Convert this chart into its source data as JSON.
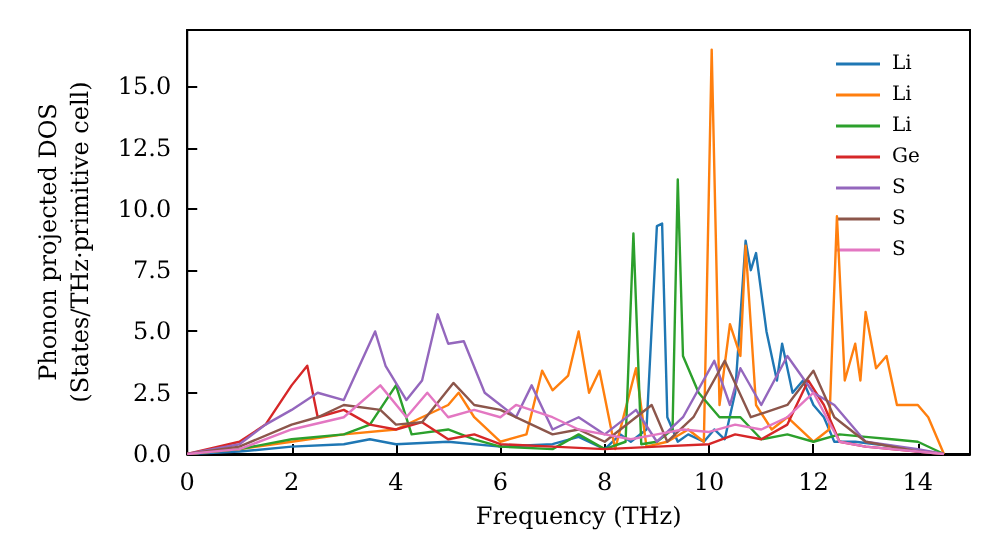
{
  "chart_data": {
    "type": "line",
    "xlabel": "Frequency (THz)",
    "ylabel": "Phonon projected DOS\n(States/THz·primitive cell)",
    "xlim": [
      0,
      15
    ],
    "ylim": [
      0,
      17.3
    ],
    "xticks": [
      0,
      2,
      4,
      6,
      8,
      10,
      12,
      14
    ],
    "yticks": [
      {
        "value": 0,
        "label": "0.0"
      },
      {
        "value": 2.5,
        "label": "2.5"
      },
      {
        "value": 5,
        "label": "5.0"
      },
      {
        "value": 7.5,
        "label": "7.5"
      },
      {
        "value": 10,
        "label": "10.0"
      },
      {
        "value": 12.5,
        "label": "12.5"
      },
      {
        "value": 15,
        "label": "15.0"
      }
    ],
    "grid": false,
    "legend": "top right",
    "marker": "none",
    "line_style": "solid",
    "series": [
      {
        "name": "Li",
        "color": "#1f77b4",
        "x": [
          0,
          1,
          2,
          3,
          3.5,
          4,
          5,
          6,
          7,
          7.5,
          8,
          8.3,
          8.5,
          8.8,
          9,
          9.1,
          9.2,
          9.4,
          9.6,
          9.9,
          10.1,
          10.3,
          10.5,
          10.7,
          10.8,
          10.9,
          11.1,
          11.3,
          11.4,
          11.6,
          11.8,
          12,
          12.2,
          12.4,
          12.8,
          13.2,
          13.6
        ],
        "values": [
          0,
          0.1,
          0.3,
          0.4,
          0.6,
          0.4,
          0.5,
          0.3,
          0.4,
          0.7,
          0.2,
          0.8,
          0.5,
          1.0,
          9.3,
          9.4,
          1.5,
          0.5,
          0.8,
          0.5,
          1.0,
          0.6,
          2.5,
          8.7,
          7.5,
          8.2,
          5.0,
          3.0,
          4.5,
          2.5,
          3.0,
          2.0,
          1.5,
          0.5,
          0.5,
          0.4,
          0.3
        ]
      },
      {
        "name": "Li",
        "color": "#ff7f0e",
        "x": [
          0,
          1,
          2,
          3,
          4,
          4.5,
          5,
          5.2,
          5.5,
          6,
          6.5,
          6.8,
          7,
          7.3,
          7.5,
          7.7,
          7.9,
          8.2,
          8.6,
          8.8,
          9.2,
          9.6,
          9.9,
          10.05,
          10.2,
          10.4,
          10.6,
          10.7,
          10.9,
          11.2,
          11.5,
          12,
          12.3,
          12.45,
          12.6,
          12.8,
          12.9,
          13,
          13.2,
          13.4,
          13.6,
          14,
          14.2,
          14.5
        ],
        "values": [
          0,
          0.2,
          0.5,
          0.8,
          1.0,
          1.5,
          2.0,
          2.5,
          1.5,
          0.5,
          0.8,
          3.4,
          2.6,
          3.2,
          5.0,
          2.5,
          3.4,
          0.2,
          3.5,
          0.3,
          0.5,
          1.0,
          0.5,
          16.5,
          2.0,
          5.3,
          4.0,
          8.5,
          2.0,
          1.0,
          1.5,
          0.5,
          1.0,
          9.7,
          3.0,
          4.5,
          3.0,
          5.8,
          3.5,
          4.0,
          2.0,
          2.0,
          1.5,
          0
        ]
      },
      {
        "name": "Li",
        "color": "#2ca02c",
        "x": [
          0,
          1,
          2,
          3,
          3.5,
          4,
          4.3,
          5,
          5.5,
          6,
          7,
          7.5,
          8,
          8.4,
          8.55,
          8.7,
          9,
          9.3,
          9.4,
          9.5,
          9.8,
          10.2,
          10.6,
          11,
          11.5,
          12,
          12.5,
          13,
          13.5,
          14,
          14.5
        ],
        "values": [
          0,
          0.2,
          0.6,
          0.8,
          1.2,
          2.8,
          0.8,
          1.0,
          0.6,
          0.3,
          0.2,
          0.8,
          0.2,
          0.5,
          9.0,
          0.4,
          0.5,
          1.0,
          11.2,
          4.0,
          2.5,
          1.5,
          1.5,
          0.6,
          0.8,
          0.5,
          0.8,
          0.7,
          0.6,
          0.5,
          0
        ]
      },
      {
        "name": "Ge",
        "color": "#d62728",
        "x": [
          0,
          1,
          1.5,
          2,
          2.3,
          2.5,
          3,
          3.5,
          4,
          4.5,
          5,
          5.5,
          6,
          7,
          8,
          9,
          10,
          10.5,
          11,
          11.5,
          11.9,
          12.2,
          12.5,
          13,
          14,
          14.5
        ],
        "values": [
          0,
          0.5,
          1.2,
          2.8,
          3.6,
          1.5,
          1.8,
          1.2,
          1.0,
          1.3,
          0.6,
          0.8,
          0.4,
          0.3,
          0.2,
          0.3,
          0.4,
          0.8,
          0.6,
          1.2,
          3.0,
          2.0,
          0.5,
          0.3,
          0.1,
          0
        ]
      },
      {
        "name": "S",
        "color": "#9467bd",
        "x": [
          0,
          1,
          1.5,
          2,
          2.5,
          3,
          3.6,
          3.8,
          4.2,
          4.5,
          4.8,
          5.0,
          5.3,
          5.7,
          6.3,
          6.6,
          7,
          7.5,
          8,
          8.6,
          9,
          9.5,
          10.1,
          10.4,
          10.6,
          11,
          11.5,
          12,
          12.4,
          13,
          14,
          14.5
        ],
        "values": [
          0,
          0.4,
          1.2,
          1.8,
          2.5,
          2.2,
          5.0,
          3.6,
          2.2,
          3.0,
          5.7,
          4.5,
          4.6,
          2.5,
          1.5,
          2.8,
          1.0,
          1.5,
          0.8,
          1.8,
          0.5,
          1.5,
          3.8,
          2.0,
          3.5,
          2.0,
          4.0,
          2.5,
          2.0,
          0.5,
          0.2,
          0
        ]
      },
      {
        "name": "S",
        "color": "#8c564b",
        "x": [
          0,
          1,
          2,
          2.5,
          3,
          3.7,
          4,
          4.5,
          5.1,
          5.5,
          6,
          6.5,
          7,
          7.5,
          8,
          8.9,
          9.2,
          9.7,
          10.3,
          10.8,
          11.5,
          12,
          12.4,
          13,
          14,
          14.5
        ],
        "values": [
          0,
          0.3,
          1.2,
          1.5,
          2.0,
          1.8,
          1.2,
          1.3,
          2.9,
          2.0,
          1.8,
          1.3,
          0.8,
          1.0,
          0.5,
          2.0,
          0.5,
          1.5,
          3.8,
          1.5,
          2.0,
          3.4,
          1.5,
          0.5,
          0.1,
          0
        ]
      },
      {
        "name": "S",
        "color": "#e377c2",
        "x": [
          0,
          1,
          2,
          3,
          3.7,
          4.2,
          4.6,
          5,
          5.5,
          6,
          6.3,
          7,
          7.5,
          8,
          8.5,
          9,
          9.5,
          10,
          10.5,
          11,
          11.5,
          12,
          12.5,
          13,
          14,
          14.5
        ],
        "values": [
          0,
          0.2,
          1.0,
          1.5,
          2.8,
          1.5,
          2.5,
          1.5,
          1.8,
          1.5,
          2.0,
          1.5,
          1.0,
          0.8,
          0.6,
          0.8,
          1.0,
          0.9,
          1.2,
          1.0,
          1.5,
          2.5,
          0.5,
          0.3,
          0.1,
          0
        ]
      }
    ]
  }
}
